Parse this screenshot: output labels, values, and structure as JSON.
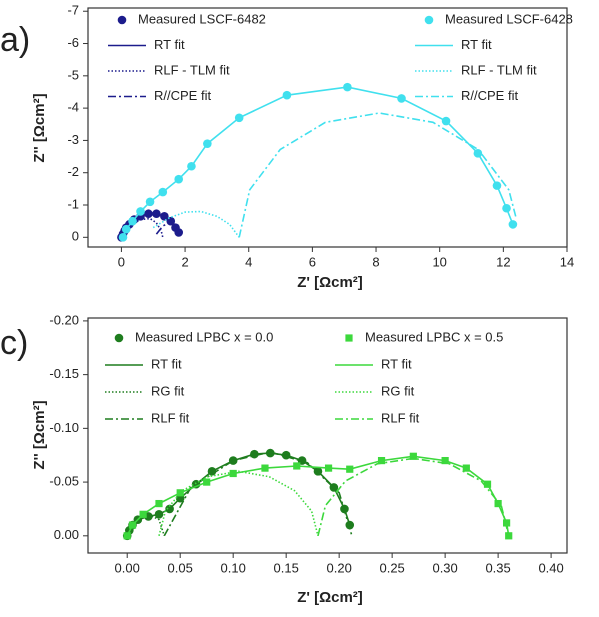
{
  "chart_data": [
    {
      "type": "scatter",
      "panel_label": "a)",
      "xlabel": "Z' [Ωcm²]",
      "ylabel": "Z'' [Ωcm²]",
      "xlim": [
        -1.05,
        14
      ],
      "xticks": [
        0,
        2,
        4,
        6,
        8,
        10,
        12,
        14
      ],
      "ylim": [
        0.3,
        -7.1
      ],
      "yticks": [
        0,
        -1,
        -2,
        -3,
        -4,
        -5,
        -6,
        -7
      ],
      "series": [
        {
          "name": "Measured LSCF-6482",
          "color": "#1c1c8c",
          "mode": "markers",
          "marker": "circle",
          "x": [
            0.0,
            0.05,
            0.1,
            0.15,
            0.25,
            0.4,
            0.6,
            0.85,
            1.1,
            1.35,
            1.55,
            1.7,
            1.8
          ],
          "values": [
            0,
            -0.1,
            -0.2,
            -0.3,
            -0.4,
            -0.55,
            -0.65,
            -0.73,
            -0.73,
            -0.65,
            -0.5,
            -0.3,
            -0.15
          ]
        },
        {
          "name": "RT fit",
          "color": "#1c1c8c",
          "mode": "lines",
          "dash": "solid",
          "x": [
            0.0,
            0.05,
            0.1,
            0.15,
            0.25,
            0.4,
            0.6,
            0.85,
            1.1,
            1.35,
            1.55,
            1.7,
            1.8
          ],
          "values": [
            0,
            -0.1,
            -0.2,
            -0.3,
            -0.4,
            -0.55,
            -0.65,
            -0.73,
            -0.73,
            -0.65,
            -0.5,
            -0.3,
            -0.15
          ]
        },
        {
          "name": "RLF - TLM fit",
          "color": "#1c1c8c",
          "mode": "lines",
          "dash": "dotted",
          "x": [
            0.3,
            0.6,
            0.9,
            1.1,
            1.25,
            1.3
          ],
          "values": [
            -0.4,
            -0.55,
            -0.58,
            -0.45,
            -0.2,
            0
          ]
        },
        {
          "name": "R//CPE fit",
          "color": "#1c1c8c",
          "mode": "lines",
          "dash": "dashdot",
          "x": [
            1.1,
            1.3,
            1.5,
            1.7,
            1.8
          ],
          "values": [
            -0.1,
            -0.35,
            -0.45,
            -0.4,
            -0.2
          ]
        },
        {
          "name": "Measured LSCF-6428",
          "color": "#40e0ee",
          "mode": "markers",
          "marker": "circle",
          "x": [
            0.05,
            0.15,
            0.35,
            0.6,
            0.9,
            1.3,
            1.8,
            2.2,
            2.7,
            3.7,
            5.2,
            7.1,
            8.8,
            10.2,
            11.2,
            11.8,
            12.1,
            12.3
          ],
          "values": [
            0,
            -0.25,
            -0.5,
            -0.8,
            -1.1,
            -1.4,
            -1.8,
            -2.2,
            -2.9,
            -3.7,
            -4.4,
            -4.65,
            -4.3,
            -3.6,
            -2.6,
            -1.6,
            -0.9,
            -0.4
          ]
        },
        {
          "name": "RT fit",
          "color": "#40e0ee",
          "mode": "lines",
          "dash": "solid",
          "x": [
            0.05,
            0.15,
            0.35,
            0.6,
            0.9,
            1.3,
            1.8,
            2.2,
            2.7,
            3.7,
            5.2,
            7.1,
            8.8,
            10.2,
            11.2,
            11.8,
            12.1,
            12.3
          ],
          "values": [
            0,
            -0.25,
            -0.5,
            -0.8,
            -1.1,
            -1.4,
            -1.8,
            -2.2,
            -2.9,
            -3.7,
            -4.4,
            -4.65,
            -4.3,
            -3.6,
            -2.6,
            -1.6,
            -0.9,
            -0.4
          ]
        },
        {
          "name": "RLF - TLM fit",
          "color": "#40e0ee",
          "mode": "lines",
          "dash": "dotted",
          "x": [
            1.0,
            1.5,
            2.0,
            2.5,
            3.0,
            3.4,
            3.7
          ],
          "values": [
            -0.3,
            -0.6,
            -0.78,
            -0.8,
            -0.65,
            -0.4,
            0
          ]
        },
        {
          "name": "R//CPE fit",
          "color": "#40e0ee",
          "mode": "lines",
          "dash": "dashdot",
          "x": [
            3.7,
            4.03,
            4.99,
            6.41,
            8.1,
            9.79,
            11.21,
            12.17,
            12.4
          ],
          "values": [
            0,
            -1.47,
            -2.72,
            -3.56,
            -3.85,
            -3.56,
            -2.72,
            -1.47,
            -0.6
          ]
        }
      ]
    },
    {
      "type": "scatter",
      "panel_label": "c)",
      "xlabel": "Z' [Ωcm²]",
      "ylabel": "Z'' [Ωcm²]",
      "xlim": [
        -0.037,
        0.415
      ],
      "xticks": [
        {
          "value": 0,
          "label": "0.00"
        },
        0.05,
        {
          "value": 0.1,
          "label": "0.10"
        },
        0.15,
        {
          "value": 0.2,
          "label": "0.20"
        },
        0.25,
        {
          "value": 0.3,
          "label": "0.30"
        },
        0.35,
        {
          "value": 0.4,
          "label": "0.40"
        }
      ],
      "ylim": [
        0.016,
        -0.2027
      ],
      "yticks": [
        {
          "value": 0,
          "label": "0.00"
        },
        -0.05,
        {
          "value": -0.1,
          "label": "-0.10"
        },
        -0.15,
        {
          "value": -0.2,
          "label": "-0.20"
        }
      ],
      "series": [
        {
          "name": "Measured LPBC x = 0.0",
          "color": "#1e7d1e",
          "mode": "markers",
          "marker": "circle",
          "x": [
            0.0,
            0.002,
            0.005,
            0.01,
            0.02,
            0.03,
            0.04,
            0.05,
            0.065,
            0.08,
            0.1,
            0.12,
            0.135,
            0.15,
            0.165,
            0.18,
            0.195,
            0.205,
            0.21
          ],
          "values": [
            0,
            -0.005,
            -0.01,
            -0.015,
            -0.018,
            -0.02,
            -0.025,
            -0.035,
            -0.048,
            -0.06,
            -0.07,
            -0.076,
            -0.077,
            -0.075,
            -0.07,
            -0.06,
            -0.045,
            -0.025,
            -0.01
          ]
        },
        {
          "name": "RT fit",
          "color": "#1e7d1e",
          "mode": "lines",
          "dash": "solid",
          "x": [
            0.0,
            0.002,
            0.005,
            0.01,
            0.02,
            0.03,
            0.04,
            0.05,
            0.065,
            0.08,
            0.1,
            0.12,
            0.135,
            0.15,
            0.165,
            0.18,
            0.195,
            0.205,
            0.21
          ],
          "values": [
            0,
            -0.005,
            -0.01,
            -0.015,
            -0.018,
            -0.02,
            -0.025,
            -0.035,
            -0.048,
            -0.06,
            -0.07,
            -0.076,
            -0.077,
            -0.075,
            -0.07,
            -0.06,
            -0.045,
            -0.025,
            -0.01
          ]
        },
        {
          "name": "RG fit",
          "color": "#1e7d1e",
          "mode": "lines",
          "dash": "dotted",
          "x": [
            0.0,
            0.01,
            0.02,
            0.03,
            0.035
          ],
          "values": [
            0,
            -0.015,
            -0.02,
            -0.015,
            0
          ]
        },
        {
          "name": "RLF fit",
          "color": "#1e7d1e",
          "mode": "lines",
          "dash": "dashdot",
          "x": [
            0.035,
            0.06,
            0.1,
            0.135,
            0.17,
            0.2,
            0.212
          ],
          "values": [
            0,
            -0.045,
            -0.07,
            -0.078,
            -0.068,
            -0.04,
            0
          ]
        },
        {
          "name": "Measured LPBC x = 0.5",
          "color": "#3cd83c",
          "mode": "markers",
          "marker": "square",
          "x": [
            0.0,
            0.005,
            0.015,
            0.03,
            0.05,
            0.075,
            0.1,
            0.13,
            0.16,
            0.19,
            0.21,
            0.24,
            0.27,
            0.3,
            0.32,
            0.34,
            0.35,
            0.358,
            0.36
          ],
          "values": [
            0,
            -0.01,
            -0.02,
            -0.03,
            -0.04,
            -0.05,
            -0.058,
            -0.063,
            -0.065,
            -0.063,
            -0.062,
            -0.07,
            -0.074,
            -0.07,
            -0.063,
            -0.048,
            -0.03,
            -0.012,
            0
          ]
        },
        {
          "name": "RT fit",
          "color": "#3cd83c",
          "mode": "lines",
          "dash": "solid",
          "x": [
            0.0,
            0.005,
            0.015,
            0.03,
            0.05,
            0.075,
            0.1,
            0.13,
            0.16,
            0.19,
            0.21,
            0.24,
            0.27,
            0.3,
            0.32,
            0.34,
            0.35,
            0.358,
            0.36
          ],
          "values": [
            0,
            -0.01,
            -0.02,
            -0.03,
            -0.04,
            -0.05,
            -0.058,
            -0.063,
            -0.065,
            -0.063,
            -0.062,
            -0.07,
            -0.074,
            -0.07,
            -0.063,
            -0.048,
            -0.03,
            -0.012,
            0
          ]
        },
        {
          "name": "RG fit",
          "color": "#3cd83c",
          "mode": "lines",
          "dash": "dotted",
          "x": [
            0.03,
            0.036,
            0.052,
            0.076,
            0.105,
            0.134,
            0.158,
            0.174,
            0.18
          ],
          "values": [
            0,
            -0.023,
            -0.042,
            -0.055,
            -0.06,
            -0.055,
            -0.042,
            -0.023,
            0
          ]
        },
        {
          "name": "RLF fit",
          "color": "#3cd83c",
          "mode": "lines",
          "dash": "dashdot",
          "x": [
            0.18,
            0.187,
            0.206,
            0.236,
            0.27,
            0.304,
            0.334,
            0.353,
            0.36
          ],
          "values": [
            0,
            -0.028,
            -0.051,
            -0.067,
            -0.072,
            -0.067,
            -0.051,
            -0.028,
            0
          ]
        }
      ]
    }
  ]
}
